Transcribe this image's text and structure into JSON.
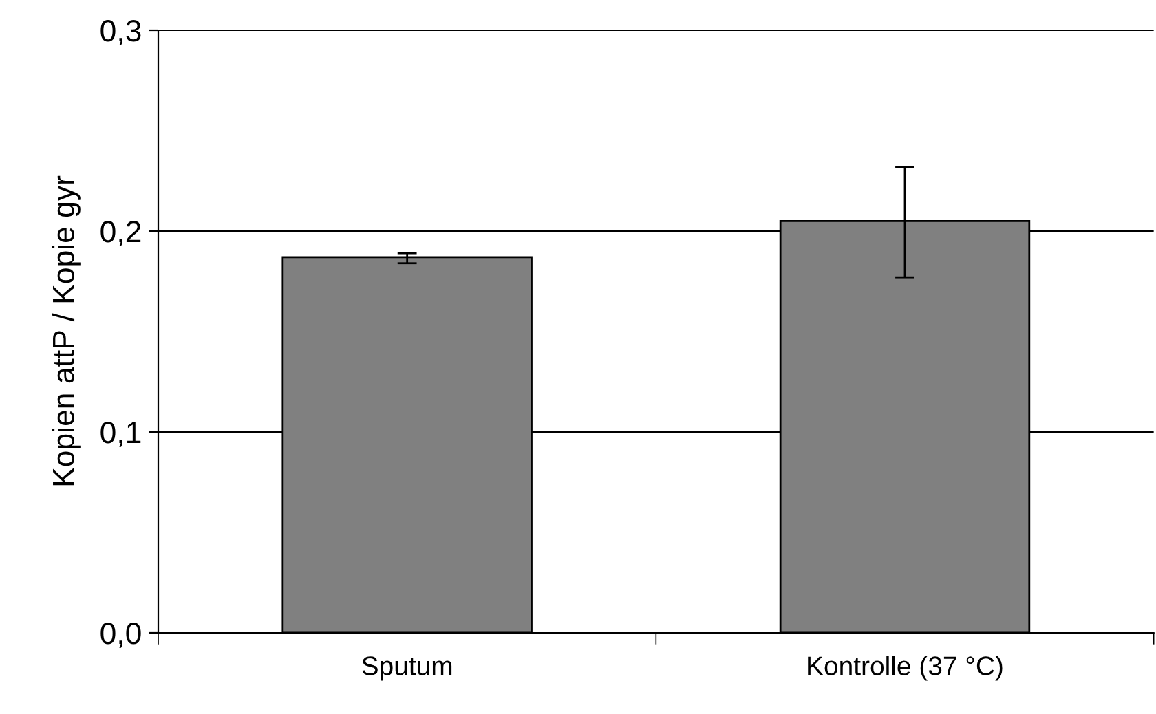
{
  "chart_data": {
    "type": "bar",
    "ylabel": "Kopien attP / Kopie gyr",
    "categories": [
      "Sputum",
      "Kontrolle (37 °C)"
    ],
    "values": [
      0.187,
      0.205
    ],
    "errors": [
      [
        0.184,
        0.189
      ],
      [
        0.177,
        0.232
      ]
    ],
    "color": "#808080",
    "ylim": [
      0,
      0.3
    ],
    "yticks": [
      {
        "value": 0,
        "label": "0,0"
      },
      {
        "value": 0.1,
        "label": "0,1"
      },
      {
        "value": 0.2,
        "label": "0,2"
      },
      {
        "value": 0.3,
        "label": "0,3"
      }
    ],
    "grid": "y"
  }
}
